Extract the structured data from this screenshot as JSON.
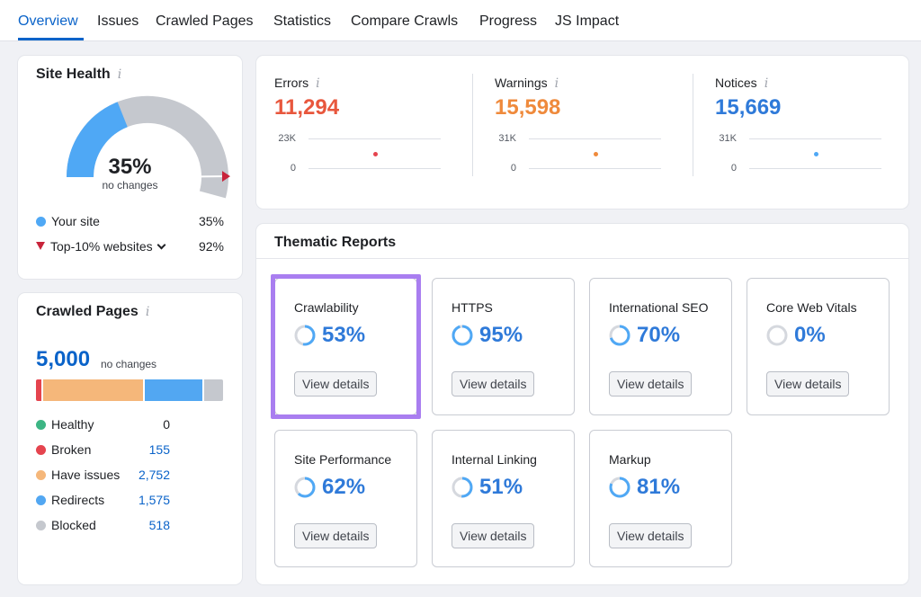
{
  "tabs": [
    {
      "label": "Overview",
      "active": true
    },
    {
      "label": "Issues"
    },
    {
      "label": "Crawled Pages"
    },
    {
      "label": "Statistics"
    },
    {
      "label": "Compare Crawls"
    },
    {
      "label": "Progress"
    },
    {
      "label": "JS Impact"
    }
  ],
  "site_health": {
    "title": "Site Health",
    "info": "i",
    "score": "35%",
    "score_value": 35,
    "subtitle": "no changes",
    "legend": {
      "your_site_label": "Your site",
      "your_site_value": "35%",
      "top10_label": "Top-10% websites",
      "top10_value": "92%",
      "top10_value_num": 92
    },
    "colors": {
      "site": "#4fa8f5",
      "rest": "#c5c8ce",
      "marker": "#c8243b"
    }
  },
  "stats": [
    {
      "label": "Errors",
      "info": "i",
      "value": "11,294",
      "axis_top": "23K",
      "axis_bottom": "0",
      "color": "#e8573d"
    },
    {
      "label": "Warnings",
      "info": "i",
      "value": "15,598",
      "axis_top": "31K",
      "axis_bottom": "0",
      "color": "#ef8a3c"
    },
    {
      "label": "Notices",
      "info": "i",
      "value": "15,669",
      "axis_top": "31K",
      "axis_bottom": "0",
      "color": "#2f7ad9"
    }
  ],
  "crawled_pages": {
    "title": "Crawled Pages",
    "info": "i",
    "total": "5,000",
    "subtitle": "no changes",
    "segments": [
      {
        "label": "Healthy",
        "value": "0",
        "count": 0,
        "color": "#3db584"
      },
      {
        "label": "Broken",
        "value": "155",
        "count": 155,
        "color": "#e5444e"
      },
      {
        "label": "Have issues",
        "value": "2,752",
        "count": 2752,
        "color": "#f5b77a"
      },
      {
        "label": "Redirects",
        "value": "1,575",
        "count": 1575,
        "color": "#52a7f2"
      },
      {
        "label": "Blocked",
        "value": "518",
        "count": 518,
        "color": "#c5c8ce"
      }
    ]
  },
  "thematic": {
    "title": "Thematic Reports",
    "button_label": "View details",
    "reports": [
      {
        "name": "Crawlability",
        "pct": "53%",
        "value": 53
      },
      {
        "name": "HTTPS",
        "pct": "95%",
        "value": 95
      },
      {
        "name": "International SEO",
        "pct": "70%",
        "value": 70
      },
      {
        "name": "Core Web Vitals",
        "pct": "0%",
        "value": 0
      },
      {
        "name": "Site Performance",
        "pct": "62%",
        "value": 62
      },
      {
        "name": "Internal Linking",
        "pct": "51%",
        "value": 51
      },
      {
        "name": "Markup",
        "pct": "81%",
        "value": 81
      }
    ],
    "ring_color": "#4fa8f5",
    "ring_track": "#d5d8de"
  }
}
